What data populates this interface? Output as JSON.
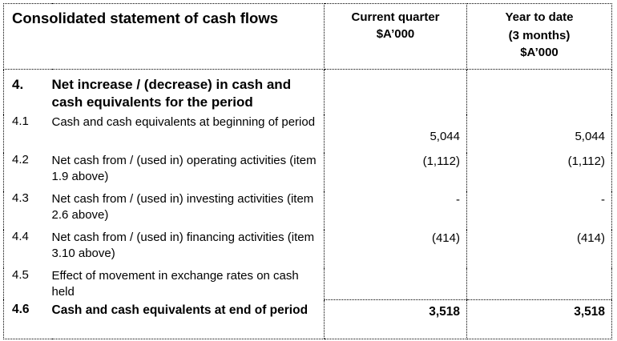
{
  "header": {
    "title": "Consolidated statement of cash flows",
    "col_current": [
      "Current quarter",
      "$A’000"
    ],
    "col_ytd": [
      "Year to date",
      "(3 months)",
      "$A’000"
    ]
  },
  "section": {
    "number": "4.",
    "title": "Net increase / (decrease) in cash and cash equivalents for the period"
  },
  "rows": [
    {
      "num": "4.1",
      "desc": "Cash and cash equivalents at beginning of period",
      "current": "5,044",
      "ytd": "5,044"
    },
    {
      "num": "4.2",
      "desc": "Net cash from / (used in) operating activities (item 1.9 above)",
      "current": "(1,112)",
      "ytd": "(1,112)"
    },
    {
      "num": "4.3",
      "desc": "Net cash from / (used in) investing activities (item 2.6 above)",
      "current": "-",
      "ytd": "-"
    },
    {
      "num": "4.4",
      "desc": "Net cash from / (used in) financing activities (item 3.10 above)",
      "current": "(414)",
      "ytd": "(414)"
    },
    {
      "num": "4.5",
      "desc": "Effect of movement in exchange rates on cash held",
      "current": "",
      "ytd": ""
    },
    {
      "num": "4.6",
      "desc": "Cash and cash equivalents at end of period",
      "current": "3,518",
      "ytd": "3,518"
    }
  ]
}
